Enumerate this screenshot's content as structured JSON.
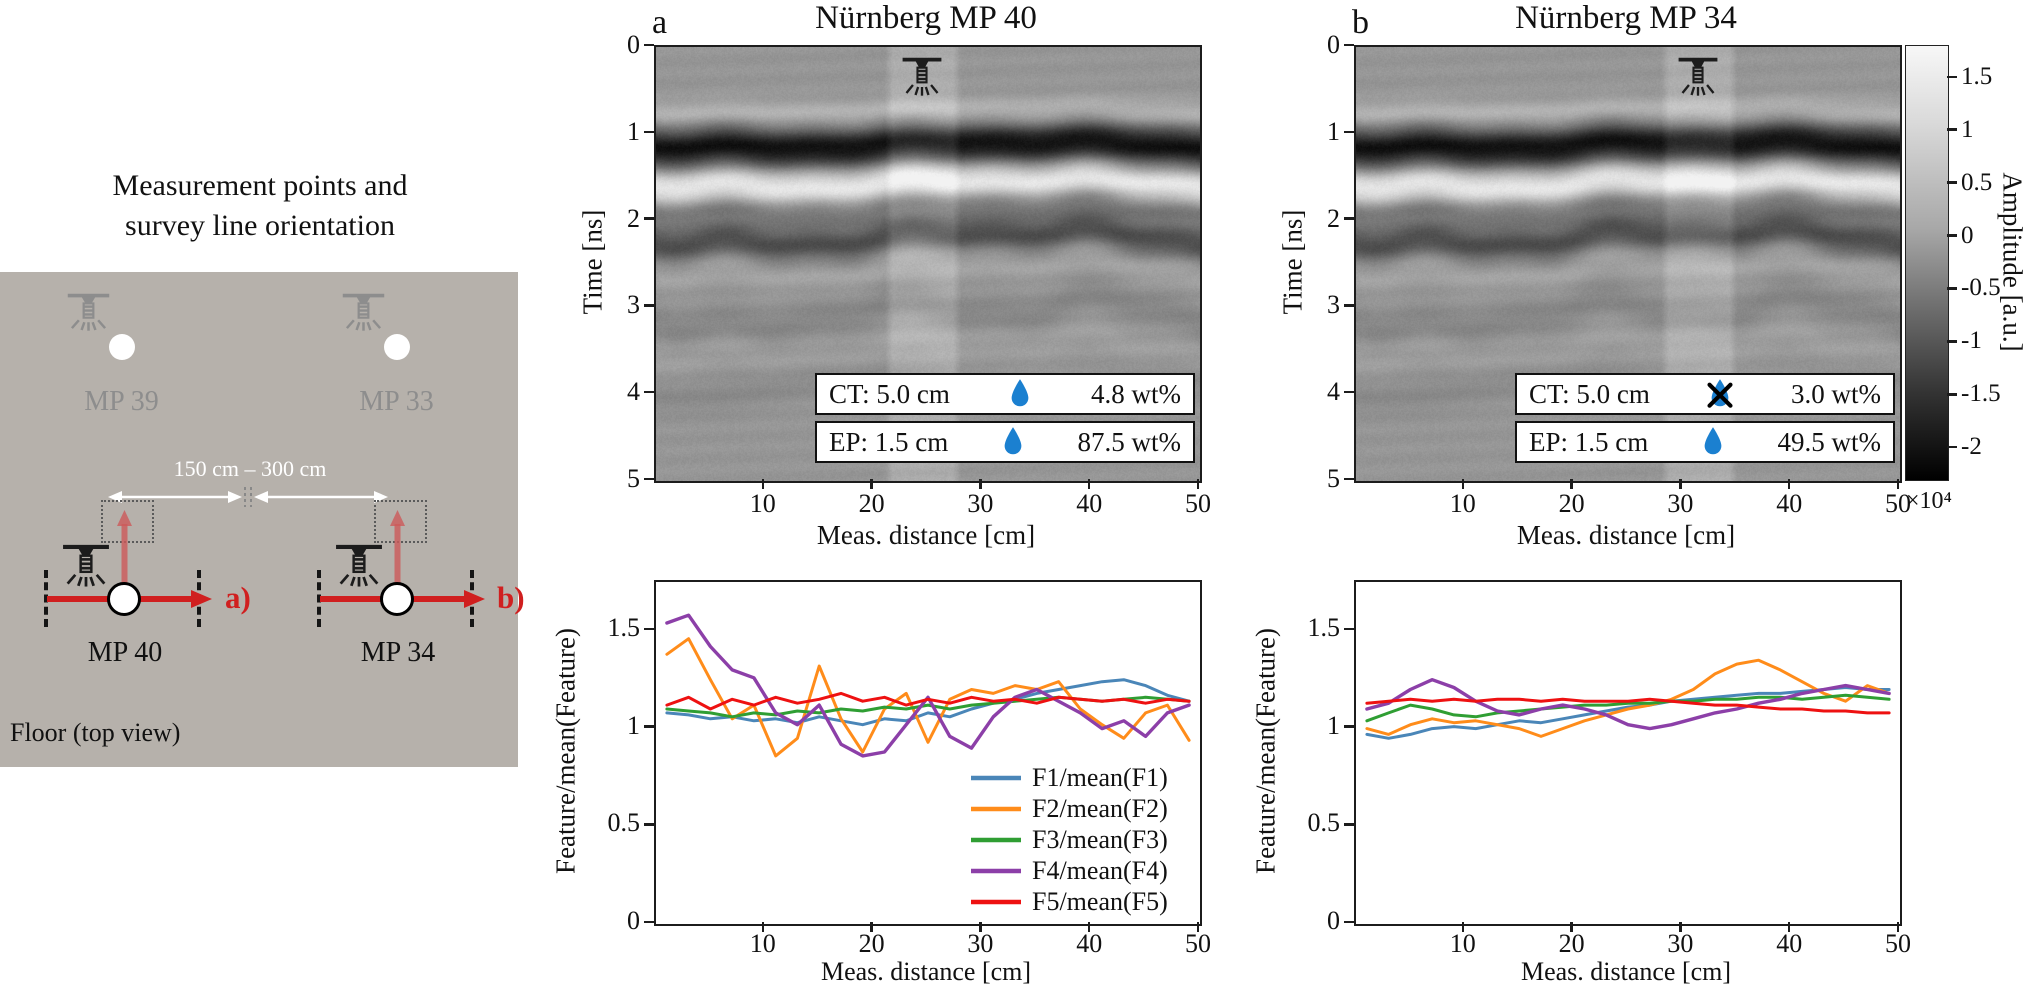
{
  "colors": {
    "floor": "#b6b1ab",
    "droplet": "#1b80d0",
    "survey_arrow": "#d01f1f",
    "ghost": "#8d8d8d"
  },
  "left_diagram": {
    "title_line1": "Measurement points and",
    "title_line2": "survey line orientation",
    "distance_label": "150 cm – 300 cm",
    "floor_label": "Floor (top view)",
    "ghost_points": [
      {
        "label": "MP 39"
      },
      {
        "label": "MP 33"
      }
    ],
    "survey_points": [
      {
        "label": "MP 40",
        "direction_label": "a)"
      },
      {
        "label": "MP 34",
        "direction_label": "b)"
      }
    ]
  },
  "radargrams": [
    {
      "panel": "a",
      "title": "Nürnberg MP 40",
      "xlabel": "Meas. distance [cm]",
      "ylabel": "Time [ns]",
      "xticks": [
        10,
        20,
        30,
        40,
        50
      ],
      "yticks": [
        0,
        1,
        2,
        3,
        4,
        5
      ],
      "xlim": [
        0,
        50
      ],
      "ylim": [
        0,
        5
      ],
      "sprinkler_band_cm": [
        21,
        28
      ],
      "annotations": [
        {
          "label": "CT: 5.0 cm",
          "icon": "droplet",
          "value": "4.8 wt%"
        },
        {
          "label": "EP: 1.5 cm",
          "icon": "droplet",
          "value": "87.5 wt%"
        }
      ]
    },
    {
      "panel": "b",
      "title": "Nürnberg MP 34",
      "xlabel": "Meas. distance [cm]",
      "ylabel": "Time [ns]",
      "xticks": [
        10,
        20,
        30,
        40,
        50
      ],
      "yticks": [
        0,
        1,
        2,
        3,
        4,
        5
      ],
      "xlim": [
        0,
        50
      ],
      "ylim": [
        0,
        5
      ],
      "sprinkler_band_cm": [
        28,
        35
      ],
      "annotations": [
        {
          "label": "CT: 5.0 cm",
          "icon": "droplet-crossed",
          "value": "3.0 wt%"
        },
        {
          "label": "EP: 1.5 cm",
          "icon": "droplet",
          "value": "49.5 wt%"
        }
      ]
    }
  ],
  "colorbar": {
    "label": "Amplitude [a.u.]",
    "scale_note": "×10⁴",
    "ticks": [
      1.5,
      1,
      0.5,
      0,
      -0.5,
      -1,
      -1.5,
      -2
    ],
    "vmax": 1.8,
    "vmin": -2.3
  },
  "chart_data": [
    {
      "type": "line",
      "title": "",
      "xlabel": "Meas. distance [cm]",
      "ylabel": "Feature/mean(Feature)",
      "xlim": [
        0,
        50
      ],
      "ylim": [
        0,
        1.75
      ],
      "xticks": [
        10,
        20,
        30,
        40,
        50
      ],
      "yticks": [
        0,
        0.5,
        1,
        1.5
      ],
      "grid": false,
      "legend_visible": true,
      "legend_position": "southeast",
      "legend": [
        "F1/mean(F1)",
        "F2/mean(F2)",
        "F3/mean(F3)",
        "F4/mean(F4)",
        "F5/mean(F5)"
      ],
      "colors": [
        "#4a86b8",
        "#ff8c1a",
        "#2f9e33",
        "#8c3fa8",
        "#ee1111"
      ],
      "x": [
        1,
        3,
        5,
        7,
        9,
        11,
        13,
        15,
        17,
        19,
        21,
        23,
        25,
        27,
        29,
        31,
        33,
        35,
        37,
        39,
        41,
        43,
        45,
        47,
        49
      ],
      "series": [
        {
          "name": "F1",
          "values": [
            1.08,
            1.07,
            1.05,
            1.06,
            1.04,
            1.05,
            1.03,
            1.06,
            1.04,
            1.02,
            1.05,
            1.04,
            1.08,
            1.06,
            1.1,
            1.13,
            1.15,
            1.18,
            1.2,
            1.22,
            1.24,
            1.25,
            1.22,
            1.17,
            1.14
          ]
        },
        {
          "name": "F2",
          "values": [
            1.38,
            1.46,
            1.25,
            1.05,
            1.12,
            0.86,
            0.95,
            1.32,
            1.05,
            0.88,
            1.1,
            1.18,
            0.93,
            1.15,
            1.2,
            1.18,
            1.22,
            1.2,
            1.24,
            1.1,
            1.02,
            0.95,
            1.08,
            1.12,
            0.94
          ]
        },
        {
          "name": "F3",
          "values": [
            1.1,
            1.09,
            1.08,
            1.06,
            1.08,
            1.07,
            1.09,
            1.08,
            1.1,
            1.09,
            1.11,
            1.1,
            1.12,
            1.1,
            1.12,
            1.13,
            1.14,
            1.15,
            1.16,
            1.15,
            1.14,
            1.15,
            1.16,
            1.15,
            1.14
          ]
        },
        {
          "name": "F4",
          "values": [
            1.54,
            1.58,
            1.42,
            1.3,
            1.26,
            1.08,
            1.02,
            1.12,
            0.92,
            0.86,
            0.88,
            1.02,
            1.16,
            0.96,
            0.9,
            1.06,
            1.16,
            1.2,
            1.14,
            1.08,
            1.0,
            1.04,
            0.96,
            1.08,
            1.12
          ]
        },
        {
          "name": "F5",
          "values": [
            1.12,
            1.16,
            1.1,
            1.15,
            1.12,
            1.16,
            1.13,
            1.15,
            1.18,
            1.14,
            1.16,
            1.12,
            1.15,
            1.13,
            1.16,
            1.14,
            1.15,
            1.13,
            1.16,
            1.15,
            1.14,
            1.15,
            1.13,
            1.15,
            1.14
          ]
        }
      ]
    },
    {
      "type": "line",
      "title": "",
      "xlabel": "Meas. distance [cm]",
      "ylabel": "Feature/mean(Feature)",
      "xlim": [
        0,
        50
      ],
      "ylim": [
        0,
        1.75
      ],
      "xticks": [
        10,
        20,
        30,
        40,
        50
      ],
      "yticks": [
        0,
        0.5,
        1,
        1.5
      ],
      "grid": false,
      "legend_visible": false,
      "legend_position": "none",
      "legend": [
        "F1/mean(F1)",
        "F2/mean(F2)",
        "F3/mean(F3)",
        "F4/mean(F4)",
        "F5/mean(F5)"
      ],
      "colors": [
        "#4a86b8",
        "#ff8c1a",
        "#2f9e33",
        "#8c3fa8",
        "#ee1111"
      ],
      "x": [
        1,
        3,
        5,
        7,
        9,
        11,
        13,
        15,
        17,
        19,
        21,
        23,
        25,
        27,
        29,
        31,
        33,
        35,
        37,
        39,
        41,
        43,
        45,
        47,
        49
      ],
      "series": [
        {
          "name": "F1",
          "values": [
            0.97,
            0.95,
            0.97,
            1.0,
            1.01,
            1.0,
            1.02,
            1.04,
            1.03,
            1.05,
            1.07,
            1.09,
            1.11,
            1.12,
            1.14,
            1.15,
            1.16,
            1.17,
            1.18,
            1.18,
            1.19,
            1.2,
            1.21,
            1.2,
            1.2
          ]
        },
        {
          "name": "F2",
          "values": [
            1.0,
            0.97,
            1.02,
            1.05,
            1.03,
            1.04,
            1.02,
            1.0,
            0.96,
            1.0,
            1.04,
            1.07,
            1.1,
            1.12,
            1.15,
            1.2,
            1.28,
            1.33,
            1.35,
            1.3,
            1.24,
            1.18,
            1.14,
            1.22,
            1.18
          ]
        },
        {
          "name": "F3",
          "values": [
            1.04,
            1.08,
            1.12,
            1.1,
            1.07,
            1.06,
            1.08,
            1.09,
            1.1,
            1.11,
            1.12,
            1.12,
            1.13,
            1.13,
            1.14,
            1.14,
            1.15,
            1.15,
            1.16,
            1.16,
            1.15,
            1.16,
            1.17,
            1.16,
            1.15
          ]
        },
        {
          "name": "F4",
          "values": [
            1.1,
            1.13,
            1.2,
            1.25,
            1.21,
            1.14,
            1.09,
            1.07,
            1.1,
            1.12,
            1.1,
            1.07,
            1.02,
            1.0,
            1.02,
            1.05,
            1.08,
            1.1,
            1.13,
            1.15,
            1.18,
            1.2,
            1.22,
            1.2,
            1.18
          ]
        },
        {
          "name": "F5",
          "values": [
            1.13,
            1.14,
            1.15,
            1.14,
            1.15,
            1.14,
            1.15,
            1.15,
            1.14,
            1.15,
            1.14,
            1.14,
            1.14,
            1.15,
            1.14,
            1.13,
            1.12,
            1.12,
            1.11,
            1.1,
            1.1,
            1.09,
            1.09,
            1.08,
            1.08
          ]
        }
      ]
    }
  ]
}
